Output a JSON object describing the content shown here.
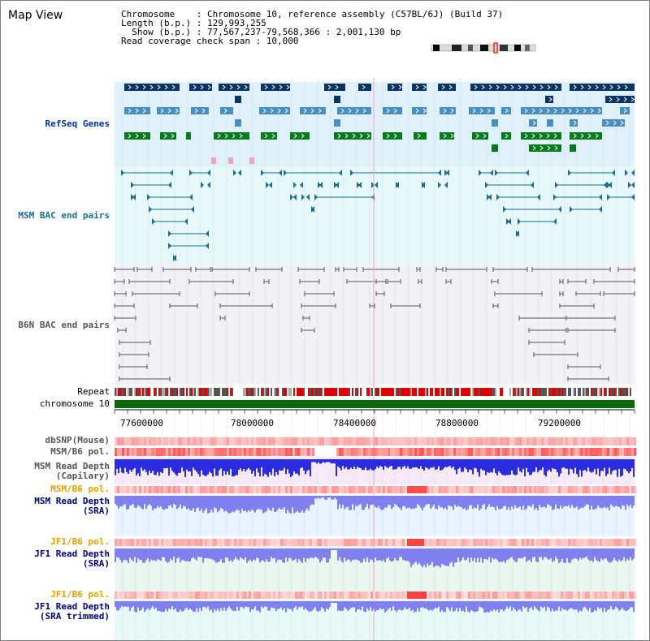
{
  "title": "Map View",
  "info": {
    "line1": "Chromosome    : Chromosome 10, reference assembly (C57BL/6J) (Build 37)",
    "line2": "Length (b.p.) : 129,993,255",
    "line3": "  Show (b.p.) : 77,567,237-79,568,366 : 2,001,130 bp",
    "line4": "Read coverage check span : 10,000"
  },
  "tracks": {
    "refseq": "RefSeq Genes",
    "msm_bac": "MSM BAC end pairs",
    "b6n_bac": "B6N BAC end pairs",
    "repeat": "Repeat",
    "chromosome": "chromosome 10",
    "dbsnp": "dbSNP(Mouse)",
    "msm_b6_pol_1": "MSM/B6 pol.",
    "msm_read_cap_1": "MSM Read Depth",
    "msm_read_cap_2": "(Capilary)",
    "msm_b6_pol_2": "MSM/B6 pol.",
    "msm_read_sra_1": "MSM Read Depth",
    "msm_read_sra_2": "(SRA)",
    "jf1_b6_pol_1": "JF1/B6 pol.",
    "jf1_read_sra_1": "JF1 Read Depth",
    "jf1_read_sra_2": "(SRA)",
    "jf1_b6_pol_2": "JF1/B6 pol.",
    "jf1_read_trim_1": "JF1 Read Depth",
    "jf1_read_trim_2": "(SRA trimmed)"
  },
  "axis": {
    "ticks": [
      "77600000",
      "78000000",
      "78400000",
      "78800000",
      "79200000"
    ]
  },
  "colors": {
    "refseq_bg": "#dff2fb",
    "gene_dark": "#0a3366",
    "gene_mid": "#4a8fbf",
    "gene_green": "#007a1a",
    "msm_bac": "#1a6f8f",
    "b6n_bac": "#555555",
    "depth_blue": "#2b2be0",
    "depth_light": "#8080f0",
    "pol_red": "#e03030",
    "label_orange": "#e0a000",
    "label_navy": "#000080"
  }
}
